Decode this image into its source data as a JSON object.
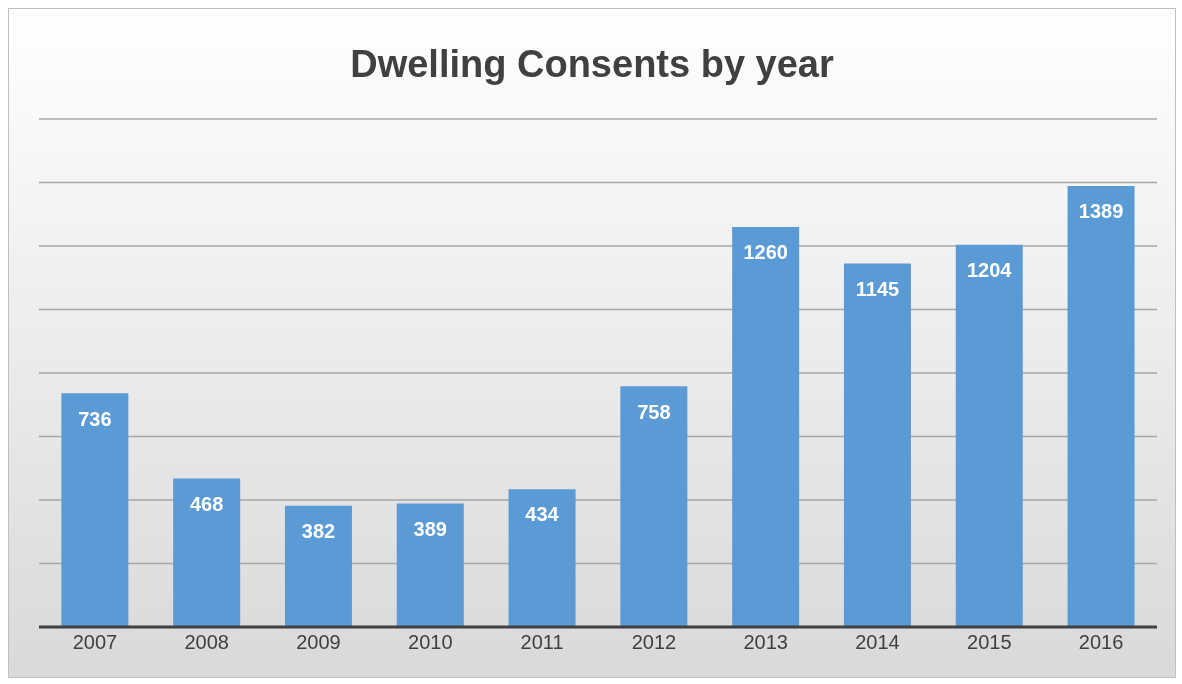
{
  "chart_data": {
    "type": "bar",
    "title": "Dwelling Consents by year",
    "categories": [
      "2007",
      "2008",
      "2009",
      "2010",
      "2011",
      "2012",
      "2013",
      "2014",
      "2015",
      "2016"
    ],
    "values": [
      736,
      468,
      382,
      389,
      434,
      758,
      1260,
      1145,
      1204,
      1389
    ],
    "color": "#5b9bd5",
    "ylim": [
      0,
      1600
    ],
    "yticks": [
      {
        "value": 0,
        "label": null
      },
      {
        "value": 200,
        "label": null
      },
      {
        "value": 400,
        "label": null
      },
      {
        "value": 600,
        "label": null
      },
      {
        "value": 800,
        "label": null
      },
      {
        "value": 1000,
        "label": null
      },
      {
        "value": 1200,
        "label": null
      },
      {
        "value": 1400,
        "label": null
      },
      {
        "value": 1600,
        "label": null
      }
    ],
    "grid": "y",
    "tick_labels": "x",
    "data_labels": true
  }
}
